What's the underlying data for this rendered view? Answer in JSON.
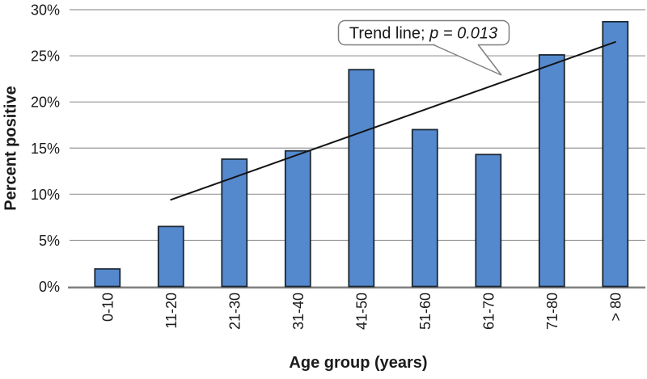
{
  "chart_data": {
    "type": "bar",
    "title": "",
    "xlabel": "Age group (years)",
    "ylabel": "Percent positive",
    "categories": [
      "0-10",
      "11-20",
      "21-30",
      "31-40",
      "41-50",
      "51-60",
      "61-70",
      "71-80",
      "> 80"
    ],
    "values": [
      1.9,
      6.5,
      13.8,
      14.7,
      23.5,
      17.0,
      14.3,
      25.1,
      28.7
    ],
    "ylim": [
      0,
      30
    ],
    "ytick_step": 5,
    "ytick_labels": [
      "0%",
      "5%",
      "10%",
      "15%",
      "20%",
      "25%",
      "30%"
    ],
    "grid": true,
    "legend_position": "none",
    "bar_label_rotation_deg": -90,
    "annotation": {
      "text_regular": "Trend line; ",
      "text_italic": "p = 0.013"
    },
    "trendline": {
      "start_category": "11-20",
      "end_category": "> 80",
      "start_value": 9.4,
      "end_value": 26.5,
      "p_value": 0.013
    },
    "colors": {
      "bar_fill": "#5589CE",
      "bar_border": "#1B2733",
      "gridline": "#999999",
      "axis_line": "#808080",
      "trend_line": "#141414",
      "callout_border": "#7F7F7F",
      "callout_fill": "#FFFFFF",
      "text": "#1A1A1A"
    }
  }
}
